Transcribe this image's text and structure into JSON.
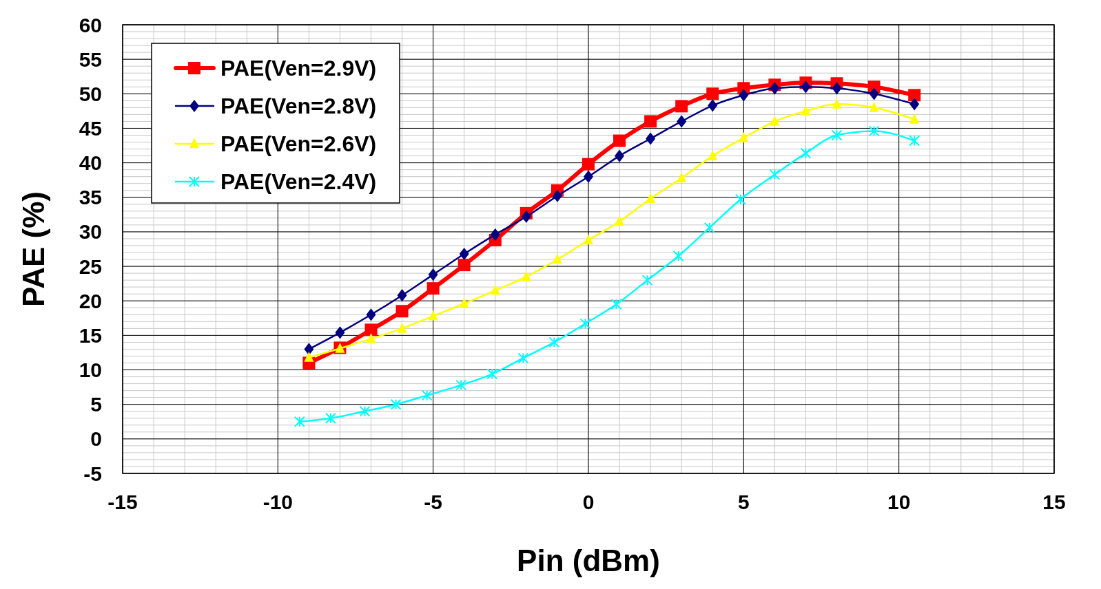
{
  "chart_data": {
    "type": "line",
    "xlabel": "Pin (dBm)",
    "ylabel": "PAE (%)",
    "xlim": [
      -15,
      15
    ],
    "xticks": [
      -15,
      -10,
      -5,
      0,
      5,
      10,
      15
    ],
    "ylim": [
      -5,
      60
    ],
    "yticks": [
      -5,
      0,
      5,
      10,
      15,
      20,
      25,
      30,
      35,
      40,
      45,
      50,
      55,
      60
    ],
    "grid": true,
    "legend": "top left",
    "series": [
      {
        "name": "PAE(Ven=2.9V)",
        "color": "#ff0000",
        "marker": "square",
        "x": [
          -9,
          -8,
          -7,
          -6,
          -5,
          -4,
          -3,
          -2,
          -1,
          0,
          1,
          2,
          3,
          4,
          5,
          6,
          7,
          8,
          9.2,
          10.5
        ],
        "values": [
          11,
          13.2,
          15.8,
          18.5,
          21.8,
          25.2,
          28.8,
          32.7,
          36,
          39.8,
          43.2,
          46,
          48.2,
          50,
          50.8,
          51.3,
          51.6,
          51.5,
          51,
          49.8
        ]
      },
      {
        "name": "PAE(Ven=2.8V)",
        "color": "#000080",
        "marker": "diamond",
        "x": [
          -9,
          -8,
          -7,
          -6,
          -5,
          -4,
          -3,
          -2,
          -1,
          0,
          1,
          2,
          3,
          4,
          5,
          6,
          7,
          8,
          9.2,
          10.5
        ],
        "values": [
          13,
          15.4,
          18,
          20.8,
          23.8,
          26.8,
          29.6,
          32.2,
          35.2,
          38,
          41,
          43.5,
          46,
          48.3,
          49.8,
          50.8,
          51,
          50.8,
          50,
          48.5
        ]
      },
      {
        "name": "PAE(Ven=2.6V)",
        "color": "#ffff00",
        "marker": "triangle",
        "x": [
          -9,
          -8,
          -7,
          -6,
          -5,
          -4,
          -3,
          -2,
          -1,
          0,
          1,
          2,
          3,
          4,
          5,
          6,
          7,
          8,
          9.2,
          10.5
        ],
        "values": [
          11.8,
          13.1,
          14.5,
          16,
          17.8,
          19.6,
          21.5,
          23.5,
          26,
          28.8,
          31.5,
          34.8,
          37.8,
          41,
          43.6,
          46,
          47.5,
          48.5,
          48,
          46.3
        ]
      },
      {
        "name": "PAE(Ven=2.4V)",
        "color": "#00ffff",
        "marker": "cross",
        "x": [
          -9.3,
          -8.3,
          -7.2,
          -6.2,
          -5.2,
          -4.1,
          -3.1,
          -2.1,
          -1.1,
          -0.1,
          0.9,
          1.9,
          2.9,
          3.9,
          4.9,
          6,
          7,
          8,
          9.2,
          10.5
        ],
        "values": [
          2.5,
          3,
          4,
          5,
          6.3,
          7.8,
          9.4,
          11.7,
          14,
          16.7,
          19.5,
          23,
          26.5,
          30.6,
          34.7,
          38.3,
          41.4,
          44,
          44.6,
          43.2
        ]
      }
    ]
  }
}
